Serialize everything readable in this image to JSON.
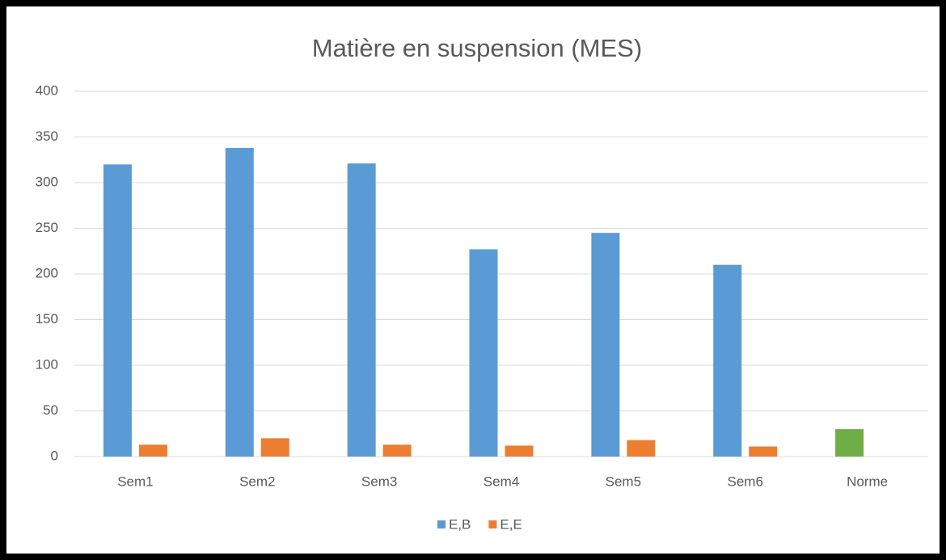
{
  "chart_data": {
    "type": "bar",
    "title": "Matière en suspension (MES)",
    "categories": [
      "Sem1",
      "Sem2",
      "Sem3",
      "Sem4",
      "Sem5",
      "Sem6",
      "Norme"
    ],
    "series": [
      {
        "name": "E,B",
        "color": "#5b9bd5",
        "point_colors": [
          null,
          null,
          null,
          null,
          null,
          null,
          "#70ad47"
        ],
        "values": [
          320,
          338,
          321,
          227,
          245,
          210,
          30
        ]
      },
      {
        "name": "E,E",
        "color": "#ed7d31",
        "values": [
          13,
          20,
          13,
          12,
          18,
          11,
          null
        ]
      }
    ],
    "ylim": [
      0,
      400
    ],
    "yticks": [
      0,
      50,
      100,
      150,
      200,
      250,
      300,
      350,
      400
    ],
    "grid": true,
    "legend": "bottom"
  }
}
